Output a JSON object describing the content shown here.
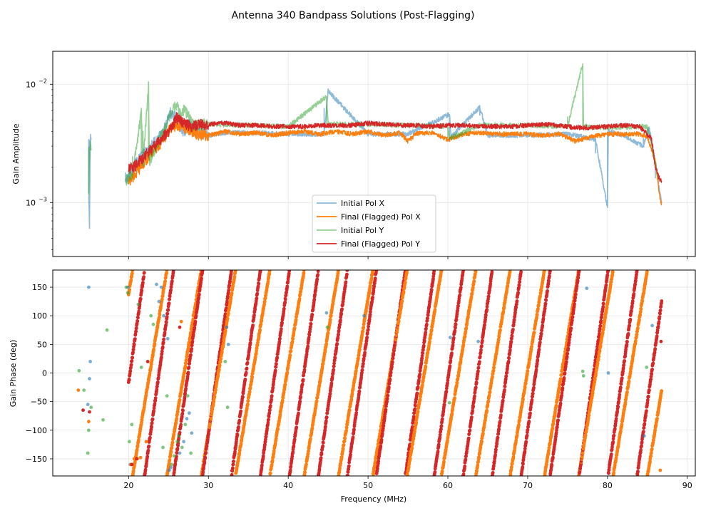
{
  "figure": {
    "title": "Antenna 340 Bandpass Solutions (Post-Flagging)"
  },
  "chart_data": [
    {
      "type": "line",
      "panel": "amplitude",
      "ylabel": "Gain Amplitude",
      "yscale": "log",
      "ylim": [
        0.00035,
        0.019
      ],
      "xlim": [
        10.5,
        91
      ],
      "xticks": [
        20,
        30,
        40,
        50,
        60,
        70,
        80,
        90
      ],
      "yticks": [
        {
          "value": 0.01,
          "base": "10",
          "exp": "−2"
        },
        {
          "value": 0.001,
          "base": "10",
          "exp": "−3"
        }
      ],
      "grid": true,
      "legend_position": "lower-center",
      "legend": [
        {
          "label": "Initial Pol X",
          "color": "#1f77b4",
          "alpha": 0.5
        },
        {
          "label": "Final (Flagged) Pol X",
          "color": "#ff7f0e",
          "alpha": 1.0
        },
        {
          "label": "Initial Pol Y",
          "color": "#2ca02c",
          "alpha": 0.5
        },
        {
          "label": "Final (Flagged) Pol Y",
          "color": "#d62728",
          "alpha": 1.0
        }
      ],
      "series": [
        {
          "name": "Initial Pol X",
          "color": "#1f77b4",
          "alpha": 0.5,
          "x": [
            15.0,
            15.1,
            15.2,
            19.8,
            21.0,
            23.0,
            24.5,
            25.2,
            26.0,
            27.0,
            27.5,
            28.5,
            30.0,
            32.0,
            35.0,
            40.0,
            44.5,
            45.0,
            50.0,
            55.0,
            60.2,
            60.4,
            64.0,
            65.0,
            70.0,
            75.0,
            77.0,
            78.5,
            80.0,
            80.1,
            82.0,
            84.5,
            85.2,
            86.0,
            86.8
          ],
          "y": [
            0.0012,
            0.0006,
            0.0035,
            0.0016,
            0.0022,
            0.0031,
            0.0041,
            0.0058,
            0.0052,
            0.0038,
            0.0047,
            0.004,
            0.0037,
            0.0039,
            0.0039,
            0.0038,
            0.0038,
            0.0088,
            0.0038,
            0.0038,
            0.0056,
            0.0036,
            0.0064,
            0.0037,
            0.0037,
            0.0038,
            0.0036,
            0.0034,
            0.0009,
            0.004,
            0.0037,
            0.003,
            0.0044,
            0.0022,
            0.00095
          ]
        },
        {
          "name": "Final (Flagged) Pol X",
          "color": "#ff7f0e",
          "alpha": 1.0,
          "x": [
            20.0,
            21.0,
            22.0,
            23.0,
            24.0,
            25.0,
            26.0,
            27.0,
            28.0,
            29.0,
            31.0,
            32.0,
            34.0,
            36.0,
            38.0,
            40.0,
            42.0,
            44.0,
            46.0,
            48.0,
            50.0,
            52.0,
            54.0,
            55.0,
            56.0,
            58.0,
            60.0,
            62.0,
            64.0,
            66.0,
            68.0,
            70.0,
            72.0,
            74.0,
            76.0,
            78.0,
            80.0,
            82.0,
            84.0,
            85.0,
            85.5,
            86.0,
            86.5,
            86.8
          ],
          "y": [
            0.0015,
            0.0018,
            0.0022,
            0.0027,
            0.0032,
            0.004,
            0.0046,
            0.0043,
            0.004,
            0.0037,
            0.0038,
            0.004,
            0.0038,
            0.0039,
            0.0037,
            0.0039,
            0.004,
            0.0038,
            0.004,
            0.0038,
            0.004,
            0.0037,
            0.0039,
            0.0033,
            0.0038,
            0.0039,
            0.0034,
            0.0038,
            0.0039,
            0.0038,
            0.0038,
            0.0038,
            0.0037,
            0.0038,
            0.0033,
            0.0036,
            0.0038,
            0.0038,
            0.0038,
            0.0036,
            0.0028,
            0.0022,
            0.0012,
            0.00092
          ]
        },
        {
          "name": "Initial Pol Y",
          "color": "#2ca02c",
          "alpha": 0.5,
          "x": [
            15.0,
            15.1,
            15.2,
            19.6,
            20.5,
            21.6,
            21.8,
            22.5,
            22.6,
            24.0,
            25.0,
            26.0,
            26.5,
            27.0,
            28.0,
            30.0,
            35.0,
            40.0,
            44.8,
            45.0,
            50.0,
            55.0,
            60.0,
            60.2,
            64.0,
            70.0,
            75.0,
            76.9,
            77.0,
            80.0,
            85.0,
            86.5
          ],
          "y": [
            0.0012,
            0.0026,
            0.003,
            0.0015,
            0.0018,
            0.0057,
            0.0021,
            0.0097,
            0.0022,
            0.0036,
            0.0051,
            0.0068,
            0.0055,
            0.0063,
            0.0046,
            0.0046,
            0.0045,
            0.0044,
            0.0079,
            0.0046,
            0.0046,
            0.0045,
            0.0044,
            0.0035,
            0.0045,
            0.0045,
            0.0044,
            0.015,
            0.0044,
            0.0043,
            0.0044,
            0.0015
          ]
        },
        {
          "name": "Final (Flagged) Pol Y",
          "color": "#d62728",
          "alpha": 1.0,
          "x": [
            20.0,
            21.0,
            22.0,
            23.0,
            24.0,
            25.0,
            26.0,
            27.0,
            28.0,
            29.0,
            30.0,
            32.0,
            34.0,
            36.0,
            38.0,
            40.0,
            42.0,
            44.0,
            46.0,
            48.0,
            50.0,
            52.0,
            54.0,
            56.0,
            58.0,
            60.0,
            62.0,
            64.0,
            66.0,
            68.0,
            70.0,
            72.0,
            74.0,
            76.0,
            78.0,
            80.0,
            82.0,
            84.0,
            85.5,
            86.0,
            86.5,
            86.8
          ],
          "y": [
            0.0019,
            0.0021,
            0.0025,
            0.0029,
            0.0034,
            0.004,
            0.0052,
            0.0047,
            0.0044,
            0.0046,
            0.0046,
            0.0047,
            0.0045,
            0.0045,
            0.0044,
            0.0044,
            0.0044,
            0.0045,
            0.0045,
            0.0045,
            0.0047,
            0.0046,
            0.0045,
            0.0045,
            0.0044,
            0.0045,
            0.0045,
            0.0044,
            0.0044,
            0.0044,
            0.0045,
            0.0046,
            0.0045,
            0.0043,
            0.0043,
            0.0044,
            0.0045,
            0.0044,
            0.0035,
            0.002,
            0.0016,
            0.0015
          ]
        }
      ]
    },
    {
      "type": "scatter",
      "panel": "phase",
      "xlabel": "Frequency (MHz)",
      "ylabel": "Gain Phase (deg)",
      "ylim": [
        -180,
        180
      ],
      "xlim": [
        10.5,
        91
      ],
      "xticks": [
        20,
        30,
        40,
        50,
        60,
        70,
        80,
        90
      ],
      "yticks": [
        150,
        100,
        50,
        0,
        -50,
        -100,
        -150
      ],
      "grid": true,
      "phase_wrap": {
        "x_start": 20.0,
        "x_end": 86.8,
        "orange_period_mhz": 4.3,
        "red_period_mhz": 3.63,
        "orange_x_at_minus180": 20.5,
        "red_x_at_minus180": 22.0
      },
      "series": [
        {
          "name": "Initial Pol X",
          "color": "#1f77b4",
          "alpha": 0.6,
          "x": [
            14.9,
            15.0,
            15.1,
            15.2,
            19.9,
            20.2,
            23.5,
            23.8,
            24.1,
            24.4,
            24.9,
            25.1,
            25.3,
            26.4,
            26.9,
            27.3,
            27.6,
            27.9,
            32.3,
            32.5,
            44.8,
            49.5,
            60.3,
            63.8,
            77.4,
            80.1,
            84.6,
            85.6
          ],
          "y": [
            -55,
            150,
            -10,
            20,
            150,
            -160,
            155,
            125,
            150,
            100,
            60,
            -170,
            -165,
            -140,
            -120,
            -80,
            -70,
            -105,
            80,
            50,
            105,
            100,
            62,
            55,
            148,
            0,
            -110,
            83
          ]
        },
        {
          "name": "Initial Pol Y",
          "color": "#2ca02c",
          "alpha": 0.6,
          "x": [
            13.8,
            14.4,
            14.9,
            15.0,
            15.3,
            16.8,
            17.3,
            19.7,
            19.9,
            20.1,
            20.4,
            21.2,
            21.6,
            22.8,
            23.1,
            24.3,
            24.8,
            25.4,
            25.7,
            26.1,
            26.3,
            26.7,
            27.1,
            27.4,
            27.8,
            32.1,
            32.4,
            44.9,
            60.2,
            76.9,
            77.0,
            84.9
          ],
          "y": [
            4,
            -30,
            -140,
            -100,
            -60,
            -82,
            75,
            150,
            140,
            -120,
            -90,
            120,
            10,
            100,
            85,
            -130,
            -40,
            -160,
            -145,
            -120,
            -110,
            -130,
            -90,
            -40,
            -140,
            20,
            -60,
            80,
            -52,
            3,
            -5,
            10
          ]
        },
        {
          "name": "Final (Flagged) Pol X",
          "color": "#ff7f0e",
          "alpha": 1.0,
          "x": [
            13.7,
            15.0,
            20.3,
            20.7,
            21.1,
            21.5,
            22.2,
            26.6,
            86.6
          ],
          "y": [
            -30,
            -85,
            -160,
            -150,
            -150,
            -148,
            -120,
            90,
            -170
          ]
        },
        {
          "name": "Final (Flagged) Pol Y",
          "color": "#d62728",
          "alpha": 1.0,
          "x": [
            14.3,
            15.1,
            20.4,
            21.0,
            22.4,
            26.4,
            86.7
          ],
          "y": [
            -65,
            -68,
            -160,
            -150,
            20,
            80,
            55
          ]
        }
      ]
    }
  ]
}
